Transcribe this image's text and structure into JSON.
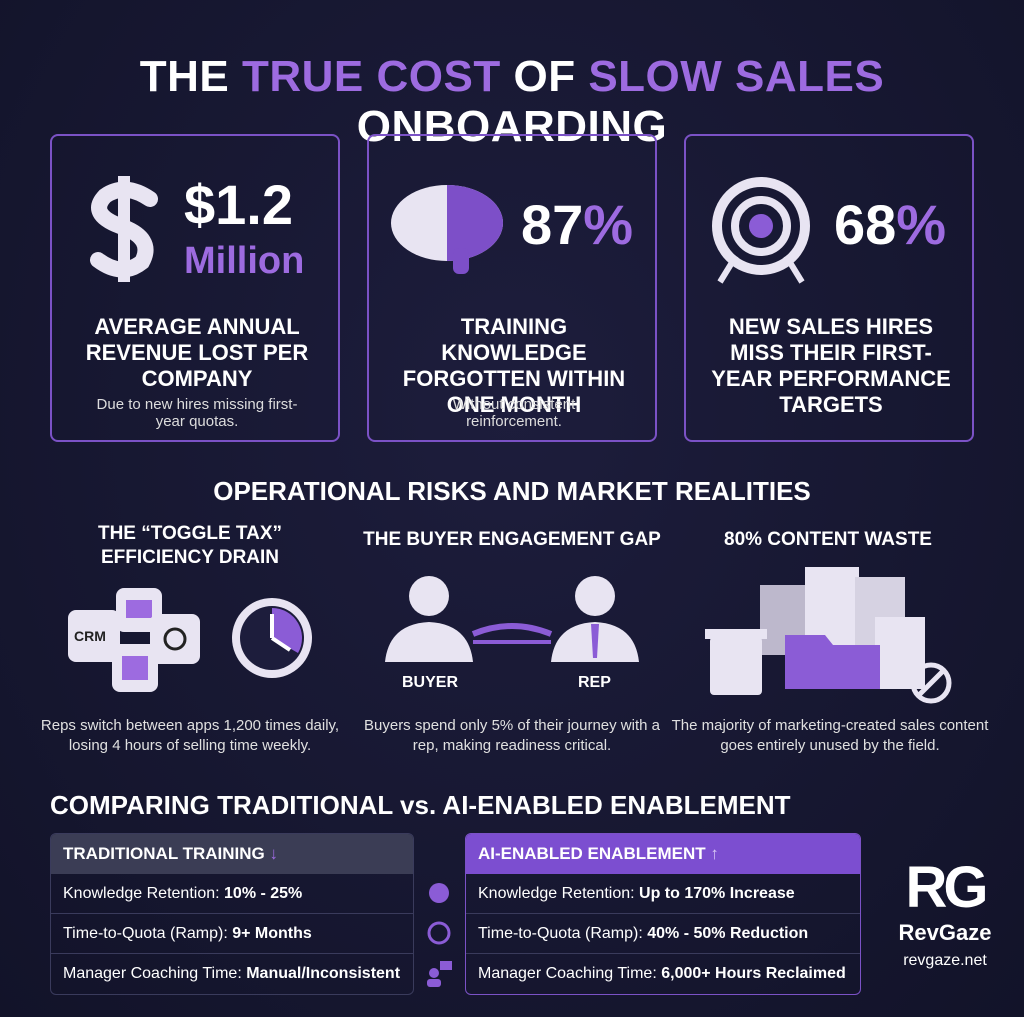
{
  "header": {
    "title_parts": [
      "THE",
      "TRUE COST",
      "OF",
      "SLOW SALES",
      "ONBOARDING"
    ]
  },
  "stats": [
    {
      "value": "$1.2",
      "unit": "Million",
      "label": "AVERAGE ANNUAL REVENUE LOST PER COMPANY",
      "note": "Due to new hires missing first-year quotas."
    },
    {
      "value": "87",
      "unit": "%",
      "label": "TRAINING KNOWLEDGE FORGOTTEN WITHIN ONE MONTH",
      "note": "Without consistent reinforcement."
    },
    {
      "value": "68",
      "unit": "%",
      "label": "NEW SALES HIRES MISS THEIR FIRST-YEAR PERFORMANCE TARGETS"
    }
  ],
  "risks": {
    "title": "OPERATIONAL RISKS AND MARKET REALITIES",
    "items": [
      {
        "title": "THE “TOGGLE TAX” EFFICIENCY DRAIN",
        "icon_label": "CRM",
        "text": "Reps switch between apps 1,200 times daily, losing 4 hours of selling time weekly."
      },
      {
        "title": "THE BUYER ENGAGEMENT GAP",
        "icon_labels": [
          "BUYER",
          "REP"
        ],
        "text": "Buyers spend only 5% of their journey with a rep, making readiness critical."
      },
      {
        "title": "80% CONTENT WASTE",
        "text": "The majority of marketing-created sales content goes entirely unused by the field."
      }
    ]
  },
  "comparison": {
    "title": "COMPARING TRADITIONAL vs. AI-ENABLED ENABLEMENT",
    "headers": [
      "TRADITIONAL TRAINING",
      "AI-ENABLED ENABLEMENT"
    ],
    "rows": [
      [
        [
          "Knowledge Retention:",
          "10% - 25%"
        ],
        [
          "Knowledge Retention:",
          "Up to 170% Increase"
        ]
      ],
      [
        [
          "Time-to-Quota (Ramp):",
          "9+ Months"
        ],
        [
          "Time-to-Quota (Ramp):",
          "40% - 50% Reduction"
        ]
      ],
      [
        [
          "Manager Coaching Time:",
          "Manual/Inconsistent"
        ],
        [
          "Manager Coaching Time:",
          "6,000+ Hours Reclaimed"
        ]
      ]
    ]
  },
  "brand": {
    "logo": "RG",
    "name": "RevGaze",
    "url": "revgaze.net"
  }
}
